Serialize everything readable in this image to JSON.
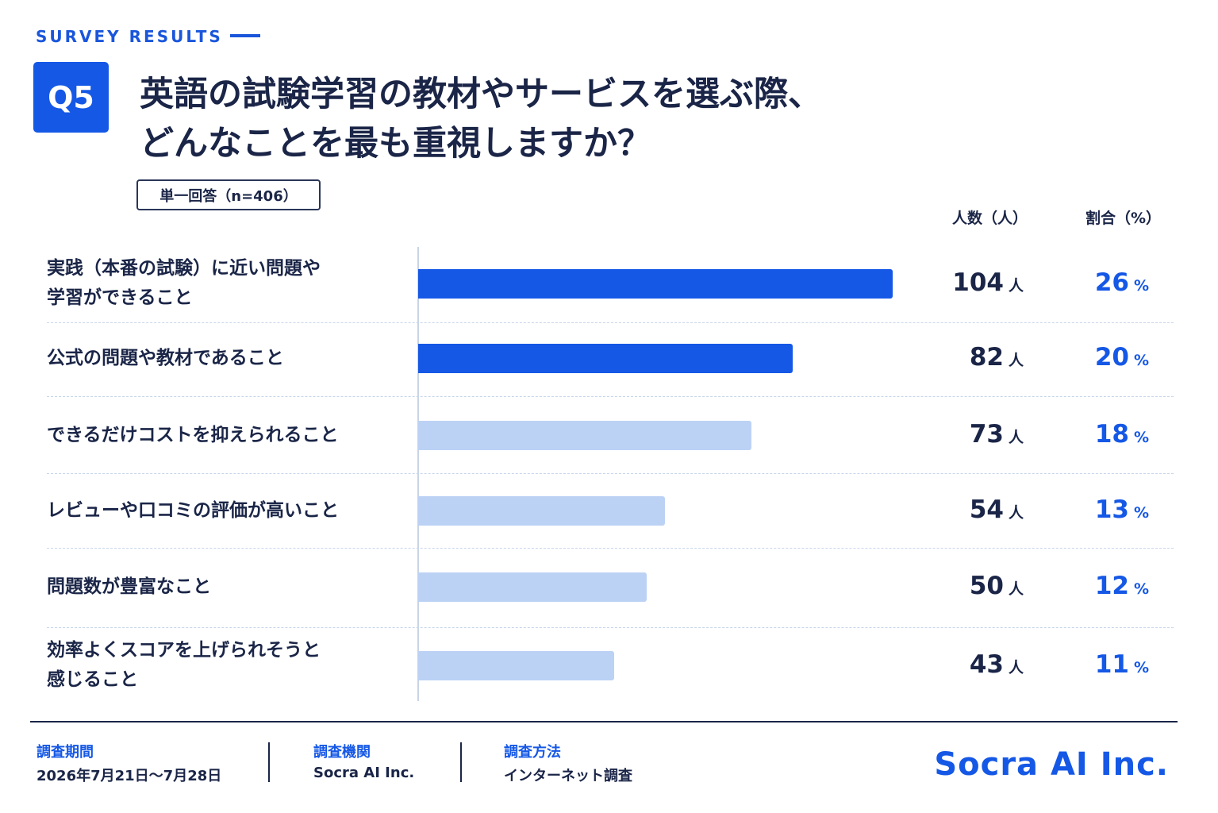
{
  "header": {
    "eyebrow": "SURVEY RESULTS",
    "question_no": "Q5",
    "title_line1": "英語の試験学習の教材やサービスを選ぶ際、",
    "title_line2": "どんなことを最も重視しますか？",
    "answer_type": "単一回答（n=406）"
  },
  "columns": {
    "count": "人数（人）",
    "percent": "割合（%）"
  },
  "units": {
    "count": "人",
    "percent": "%"
  },
  "colors": {
    "primary": "#1558e6",
    "secondary": "#bcd2f5"
  },
  "chart_data": {
    "type": "bar",
    "orientation": "horizontal",
    "categories": [
      "実践（本番の試験）に近い問題や学習ができること",
      "公式の問題や教材であること",
      "できるだけコストを抑えられること",
      "レビューや口コミの評価が高いこと",
      "問題数が豊富なこと",
      "効率よくスコアを上げられそうと感じること"
    ],
    "label_lines": [
      [
        "実践（本番の試験）に近い問題や",
        "学習ができること"
      ],
      [
        "公式の問題や教材であること"
      ],
      [
        "できるだけコストを抑えられること"
      ],
      [
        "レビューや口コミの評価が高いこと"
      ],
      [
        "問題数が豊富なこと"
      ],
      [
        "効率よくスコアを上げられそうと",
        "感じること"
      ]
    ],
    "series": [
      {
        "values": [
          104,
          82,
          73,
          54,
          50,
          43
        ]
      }
    ],
    "percentages": [
      26,
      20,
      18,
      13,
      12,
      11
    ],
    "highlight": [
      true,
      true,
      false,
      false,
      false,
      false
    ],
    "xlim": [
      0,
      104
    ]
  },
  "footer": {
    "period_label": "調査期間",
    "period_value": "2026年7月21日〜7月28日",
    "org_label": "調査機関",
    "org_value": "Socra AI Inc.",
    "method_label": "調査方法",
    "method_value": "インターネット調査",
    "brand": "Socra AI Inc."
  }
}
